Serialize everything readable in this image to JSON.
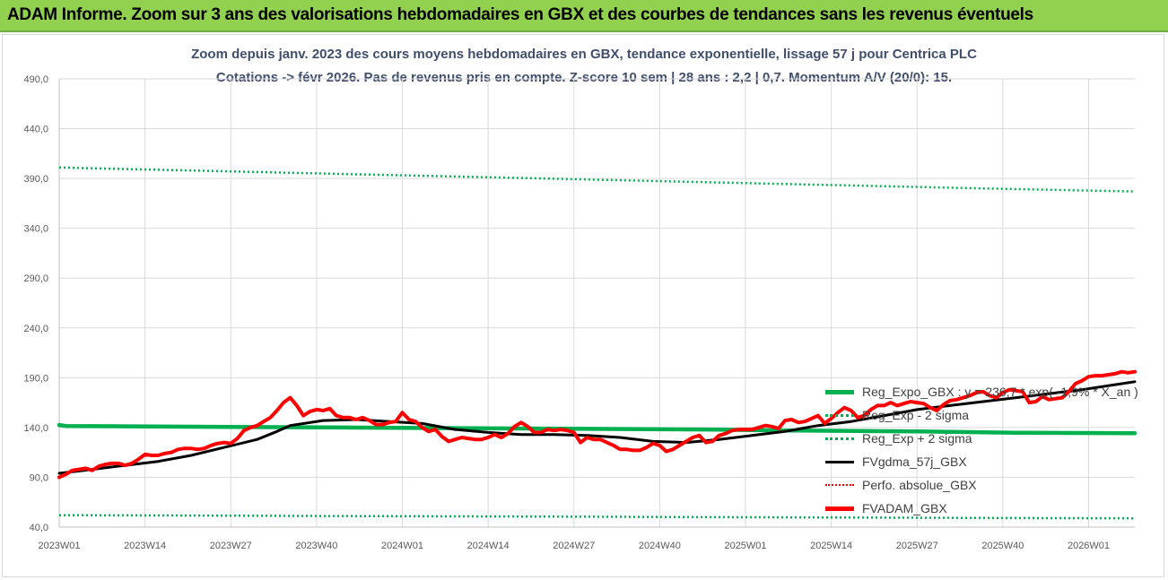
{
  "banner": {
    "title": "ADAM Informe. Zoom sur 3 ans des valorisations hebdomadaires en GBX et des courbes de tendances sans les revenus éventuels"
  },
  "colors": {
    "banner_bg": "#92d050",
    "reg_expo": "#00b050",
    "sigma": "#00b050",
    "fvgdma": "#000000",
    "perfo": "#ff0000",
    "fvadam": "#ff0000"
  },
  "chart_data": {
    "type": "line",
    "title_line1": "Zoom depuis janv. 2023 des cours moyens hebdomadaires en GBX, tendance exponentielle, lissage 57 j pour Centrica PLC",
    "title_line2": "Cotations -> févr 2026. Pas de revenus pris en compte. Z-score 10 sem | 28 ans : 2,2 | 0,7. Momentum A/V (20/0): 15.",
    "ylim": [
      40,
      490
    ],
    "y_ticks": [
      "40,0",
      "90,0",
      "140,0",
      "190,0",
      "240,0",
      "290,0",
      "340,0",
      "390,0",
      "440,0",
      "490,0"
    ],
    "x_ticks": [
      "2023W01",
      "2023W14",
      "2023W27",
      "2023W40",
      "2024W01",
      "2024W14",
      "2024W27",
      "2024W40",
      "2025W01",
      "2025W14",
      "2025W27",
      "2025W40",
      "2026W01"
    ],
    "x_tick_weeks": [
      0,
      13,
      26,
      39,
      52,
      65,
      78,
      91,
      104,
      117,
      130,
      143,
      156
    ],
    "x_max_week": 163,
    "grid": true,
    "legend_position": "bottom-right",
    "series": [
      {
        "name": "Reg_Expo_GBX : y = 236,7 * exp( -1,9% * X_an )",
        "style": "solid-thick",
        "x": [
          0,
          1,
          20,
          40,
          60,
          80,
          100,
          110,
          130,
          145,
          163
        ],
        "values": [
          142.5,
          141.5,
          140.8,
          140.1,
          139.4,
          138.6,
          137.9,
          137.0,
          136.0,
          134.8,
          134.2
        ]
      },
      {
        "name": "Reg_Exp - 2 sigma",
        "style": "dotted",
        "x": [
          0,
          20,
          40,
          60,
          80,
          100,
          120,
          140,
          163
        ],
        "values": [
          52.0,
          51.6,
          51.2,
          50.8,
          50.4,
          50.0,
          49.6,
          49.2,
          48.8
        ]
      },
      {
        "name": "Reg_Exp + 2 sigma",
        "style": "dotted",
        "x": [
          0,
          20,
          40,
          60,
          80,
          100,
          120,
          140,
          163
        ],
        "values": [
          401.0,
          398.0,
          395.0,
          392.0,
          389.0,
          386.0,
          383.0,
          380.0,
          377.0
        ]
      },
      {
        "name": "FVgdma_57j_GBX",
        "style": "solid",
        "x": [
          0,
          5,
          10,
          15,
          20,
          25,
          30,
          33,
          35,
          40,
          45,
          50,
          55,
          60,
          65,
          70,
          75,
          80,
          85,
          90,
          95,
          100,
          105,
          110,
          115,
          120,
          125,
          130,
          135,
          140,
          145,
          150,
          155,
          160,
          163
        ],
        "values": [
          94,
          98,
          102,
          106,
          112,
          120,
          128,
          136,
          142,
          147,
          148,
          146,
          144,
          138,
          135,
          133,
          133,
          132,
          130,
          126,
          125,
          128,
          132,
          136,
          142,
          146,
          152,
          158,
          162,
          166,
          170,
          174,
          178,
          183,
          186
        ]
      },
      {
        "name": "Perfo. absolue_GBX",
        "style": "dotted",
        "x": [],
        "values": []
      },
      {
        "name": "FVADAM_GBX",
        "style": "solid-thick",
        "x": [
          0,
          1,
          2,
          3,
          4,
          5,
          6,
          7,
          8,
          9,
          10,
          11,
          12,
          13,
          14,
          15,
          16,
          17,
          18,
          19,
          20,
          21,
          22,
          23,
          24,
          25,
          26,
          27,
          28,
          29,
          30,
          31,
          32,
          33,
          34,
          35,
          36,
          37,
          38,
          39,
          40,
          41,
          42,
          43,
          44,
          45,
          46,
          47,
          48,
          49,
          50,
          51,
          52,
          53,
          54,
          55,
          56,
          57,
          58,
          59,
          60,
          61,
          62,
          63,
          64,
          65,
          66,
          67,
          68,
          69,
          70,
          71,
          72,
          73,
          74,
          75,
          76,
          77,
          78,
          79,
          80,
          81,
          82,
          83,
          84,
          85,
          86,
          87,
          88,
          89,
          90,
          91,
          92,
          93,
          94,
          95,
          96,
          97,
          98,
          99,
          100,
          101,
          102,
          103,
          104,
          105,
          106,
          107,
          108,
          109,
          110,
          111,
          112,
          113,
          114,
          115,
          116,
          117,
          118,
          119,
          120,
          121,
          122,
          123,
          124,
          125,
          126,
          127,
          128,
          129,
          130,
          131,
          132,
          133,
          134,
          135,
          136,
          137,
          138,
          139,
          140,
          141,
          142,
          143,
          144,
          145,
          146,
          147,
          148,
          149,
          150,
          151,
          152,
          153,
          154,
          155,
          156,
          157,
          158,
          159,
          160,
          161,
          162,
          163
        ],
        "values": [
          90,
          93,
          97,
          98,
          99,
          97,
          101,
          103,
          104,
          104,
          102,
          104,
          108,
          113,
          112,
          112,
          114,
          115,
          118,
          119,
          119,
          118,
          119,
          122,
          124,
          125,
          124,
          129,
          137,
          140,
          142,
          146,
          150,
          157,
          165,
          170,
          162,
          152,
          156,
          158,
          157,
          159,
          152,
          150,
          150,
          148,
          150,
          147,
          143,
          143,
          145,
          146,
          155,
          148,
          146,
          140,
          136,
          138,
          131,
          126,
          128,
          130,
          129,
          128,
          128,
          130,
          133,
          130,
          134,
          141,
          145,
          141,
          135,
          135,
          138,
          137,
          138,
          137,
          135,
          125,
          130,
          128,
          128,
          125,
          122,
          118,
          118,
          117,
          117,
          120,
          124,
          122,
          116,
          118,
          122,
          126,
          130,
          132,
          125,
          126,
          132,
          134,
          137,
          138,
          138,
          138,
          140,
          142,
          141,
          139,
          147,
          148,
          145,
          146,
          149,
          152,
          144,
          149,
          155,
          160,
          157,
          150,
          152,
          158,
          162,
          162,
          165,
          162,
          164,
          166,
          165,
          164,
          160,
          157,
          163,
          167,
          168,
          170,
          172,
          175,
          176,
          172,
          170,
          175,
          178,
          177,
          176,
          165,
          166,
          171,
          168,
          169,
          170,
          176,
          184,
          187,
          191,
          192,
          192,
          193,
          194,
          196,
          195,
          196
        ]
      }
    ]
  }
}
